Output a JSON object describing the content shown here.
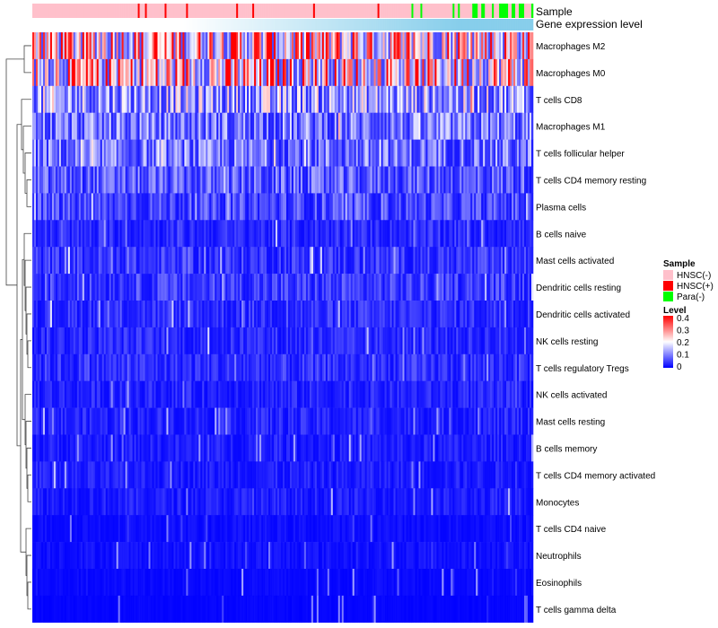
{
  "chart_data": {
    "type": "heatmap",
    "title": "",
    "column_annotations": [
      {
        "name": "Sample",
        "label": "Sample"
      },
      {
        "name": "gene-expression-level",
        "label": "Gene expression level"
      }
    ],
    "sample_groups": [
      {
        "label": "HNSC(-)",
        "color": "#ffc0cb"
      },
      {
        "label": "HNSC(+)",
        "color": "#ff0000"
      },
      {
        "label": "Para(-)",
        "color": "#00ff00"
      }
    ],
    "gene_expression_level": {
      "from": "#ffffff",
      "to": "#87ceeb"
    },
    "rows": [
      {
        "label": "Macrophages M2",
        "mean": 0.27
      },
      {
        "label": "Macrophages M0",
        "mean": 0.25
      },
      {
        "label": "T cells CD8",
        "mean": 0.14
      },
      {
        "label": "Macrophages M1",
        "mean": 0.1
      },
      {
        "label": "T cells follicular helper",
        "mean": 0.095
      },
      {
        "label": "T cells CD4 memory resting",
        "mean": 0.075
      },
      {
        "label": "Plasma cells",
        "mean": 0.06
      },
      {
        "label": "B cells naive",
        "mean": 0.035
      },
      {
        "label": "Mast cells activated",
        "mean": 0.045
      },
      {
        "label": "Dendritic cells resting",
        "mean": 0.05
      },
      {
        "label": "Dendritic cells activated",
        "mean": 0.04
      },
      {
        "label": "NK cells resting",
        "mean": 0.035
      },
      {
        "label": "T cells regulatory  Tregs",
        "mean": 0.04
      },
      {
        "label": "NK cells activated",
        "mean": 0.03
      },
      {
        "label": "Mast cells resting",
        "mean": 0.03
      },
      {
        "label": "B cells memory",
        "mean": 0.025
      },
      {
        "label": "T cells CD4 memory activated",
        "mean": 0.025
      },
      {
        "label": "Monocytes",
        "mean": 0.025
      },
      {
        "label": "T cells CD4 naive",
        "mean": 0.012
      },
      {
        "label": "Neutrophils",
        "mean": 0.015
      },
      {
        "label": "Eosinophils",
        "mean": 0.008
      },
      {
        "label": "T cells gamma delta",
        "mean": 0.004
      }
    ],
    "legend": {
      "sample_title": "Sample",
      "level_title": "Level",
      "level_range": [
        0,
        0.4
      ],
      "level_ticks": [
        "0.4",
        "0.3",
        "0.2",
        "0.1",
        "0"
      ],
      "colors": {
        "low": "#0000ff",
        "mid": "#ffffff",
        "high": "#ff0000"
      }
    },
    "placement": "legend right of heatmap, row labels right, row dendrogram left"
  }
}
